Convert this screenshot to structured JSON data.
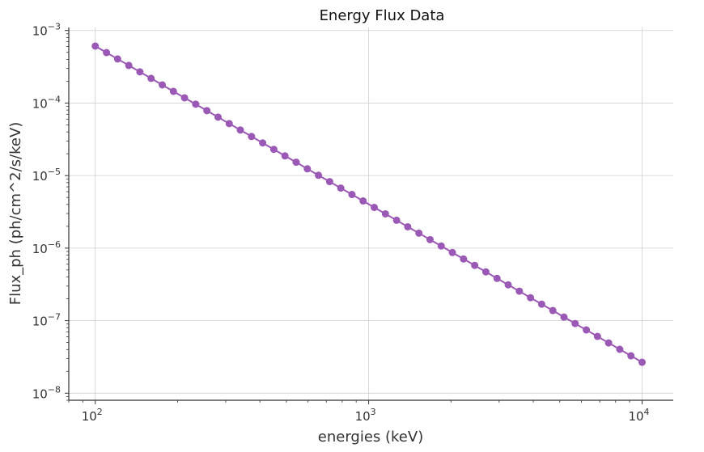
{
  "chart_data": {
    "type": "line",
    "title": "Energy Flux Data",
    "xlabel": "energies (keV)",
    "ylabel": "Flux_ph (ph/cm^2/s/keV)",
    "xscale": "log",
    "yscale": "log",
    "xlim": [
      80,
      13000
    ],
    "ylim": [
      8e-09,
      0.0011
    ],
    "grid": true,
    "xticks": [
      {
        "value": 100,
        "base": "10",
        "exp": "2"
      },
      {
        "value": 1000,
        "base": "10",
        "exp": "3"
      },
      {
        "value": 10000,
        "base": "10",
        "exp": "4"
      }
    ],
    "yticks": [
      {
        "value": 1e-08,
        "base": "10",
        "exp": "−8"
      },
      {
        "value": 1e-07,
        "base": "10",
        "exp": "−7"
      },
      {
        "value": 1e-06,
        "base": "10",
        "exp": "−6"
      },
      {
        "value": 1e-05,
        "base": "10",
        "exp": "−5"
      },
      {
        "value": 0.0001,
        "base": "10",
        "exp": "−4"
      },
      {
        "value": 0.001,
        "base": "10",
        "exp": "−3"
      }
    ],
    "series": [
      {
        "color": "#9b59b6",
        "marker": "circle",
        "x": [
          100,
          109.9,
          120.7,
          132.6,
          145.6,
          160.0,
          175.8,
          193.1,
          212.1,
          233.0,
          256.0,
          281.2,
          308.9,
          339.3,
          372.8,
          409.5,
          449.8,
          494.2,
          542.9,
          596.4,
          655.1,
          719.7,
          790.6,
          868.5,
          954.1,
          1048.1,
          1151.4,
          1264.9,
          1389.5,
          1526.4,
          1676.8,
          1842.1,
          2023.6,
          2222.9,
          2442.1,
          2682.7,
          2947.1,
          3237.5,
          3556.5,
          3906.9,
          4291.9,
          4714.9,
          5179.5,
          5689.9,
          6250.6,
          6866.5,
          7543.1,
          8286.4,
          9103.0,
          10000
        ],
        "y": [
          0.00061,
          0.000496,
          0.000405,
          0.00033,
          0.000269,
          0.000219,
          0.000178,
          0.000145,
          0.000118,
          9.64e-05,
          7.85e-05,
          6.4e-05,
          5.21e-05,
          4.25e-05,
          3.46e-05,
          2.82e-05,
          2.3e-05,
          1.87e-05,
          1.53e-05,
          1.24e-05,
          1.01e-05,
          8.26e-06,
          6.73e-06,
          5.49e-06,
          4.47e-06,
          3.64e-06,
          2.97e-06,
          2.42e-06,
          1.97e-06,
          1.61e-06,
          1.31e-06,
          1.07e-06,
          8.7e-07,
          7.09e-07,
          5.78e-07,
          4.71e-07,
          3.83e-07,
          3.12e-07,
          2.55e-07,
          2.07e-07,
          1.69e-07,
          1.38e-07,
          1.12e-07,
          9.14e-08,
          7.45e-08,
          6.07e-08,
          4.94e-08,
          4.03e-08,
          3.28e-08,
          2.67e-08
        ]
      }
    ]
  }
}
